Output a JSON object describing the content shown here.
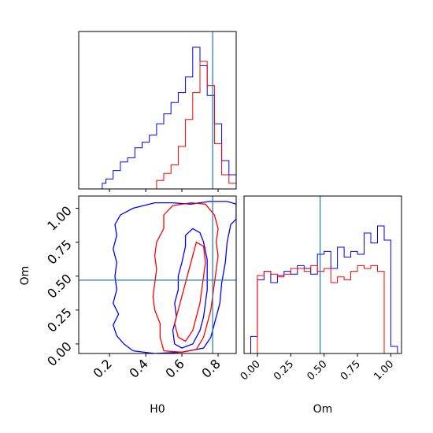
{
  "colors": {
    "blue": "#0000ff",
    "red": "#ff0000",
    "truth": "#1f77b4"
  },
  "chart_data": [
    {
      "type": "histogram",
      "panel": "H0 marginal",
      "xlim": [
        0.03,
        0.9
      ],
      "truth": 0.77,
      "xticks": [
        0.2,
        0.4,
        0.6,
        0.8
      ],
      "bins_x": [
        0.16,
        0.18,
        0.2,
        0.22,
        0.24,
        0.26,
        0.28,
        0.3,
        0.32,
        0.34,
        0.36,
        0.38,
        0.4,
        0.42,
        0.44,
        0.46,
        0.48,
        0.5,
        0.52,
        0.54,
        0.56,
        0.58,
        0.6,
        0.62,
        0.64,
        0.66,
        0.68,
        0.7,
        0.72,
        0.74,
        0.76,
        0.78,
        0.8,
        0.82,
        0.84,
        0.86,
        0.88,
        0.9
      ],
      "series": [
        {
          "color": "blue",
          "heights": [
            0.04,
            0.07,
            0.07,
            0.13,
            0.13,
            0.19,
            0.19,
            0.22,
            0.22,
            0.29,
            0.29,
            0.33,
            0.33,
            0.38,
            0.38,
            0.46,
            0.46,
            0.53,
            0.53,
            0.61,
            0.61,
            0.68,
            0.68,
            0.79,
            0.79,
            1.0,
            1.0,
            0.87,
            0.87,
            0.66,
            0.66,
            0.46,
            0.46,
            0.2,
            0.2,
            0.1,
            0.1
          ]
        },
        {
          "color": "red",
          "heights": [
            0.0,
            0.0,
            0.0,
            0.0,
            0.0,
            0.0,
            0.0,
            0.0,
            0.0,
            0.0,
            0.0,
            0.0,
            0.0,
            0.0,
            0.0,
            0.06,
            0.06,
            0.11,
            0.11,
            0.17,
            0.17,
            0.3,
            0.3,
            0.49,
            0.49,
            0.68,
            0.68,
            0.9,
            0.9,
            0.73,
            0.73,
            0.32,
            0.32,
            0.1,
            0.1,
            0.04,
            0.04
          ]
        }
      ]
    },
    {
      "type": "contour",
      "panel": "H0 vs Om",
      "xlabel": "H0",
      "ylabel": "Om",
      "xlim": [
        0.03,
        0.9
      ],
      "ylim": [
        -0.07,
        1.09
      ],
      "xticks": [
        0.2,
        0.4,
        0.6,
        0.8
      ],
      "yticks": [
        0.0,
        0.25,
        0.5,
        0.75,
        1.0
      ],
      "truth": [
        0.77,
        0.47
      ],
      "contours": [
        {
          "color": "blue",
          "level": "outer",
          "points": [
            [
              0.33,
              -0.05
            ],
            [
              0.28,
              0.0
            ],
            [
              0.24,
              0.06
            ],
            [
              0.22,
              0.14
            ],
            [
              0.25,
              0.22
            ],
            [
              0.22,
              0.3
            ],
            [
              0.24,
              0.4
            ],
            [
              0.23,
              0.5
            ],
            [
              0.24,
              0.6
            ],
            [
              0.22,
              0.7
            ],
            [
              0.24,
              0.8
            ],
            [
              0.23,
              0.88
            ],
            [
              0.26,
              0.95
            ],
            [
              0.33,
              1.0
            ],
            [
              0.45,
              1.04
            ],
            [
              0.55,
              1.04
            ],
            [
              0.65,
              1.03
            ],
            [
              0.75,
              1.05
            ],
            [
              0.85,
              1.05
            ],
            [
              0.9,
              1.03
            ],
            [
              0.9,
              0.92
            ],
            [
              0.87,
              0.88
            ],
            [
              0.85,
              0.75
            ],
            [
              0.84,
              0.6
            ],
            [
              0.82,
              0.45
            ],
            [
              0.81,
              0.3
            ],
            [
              0.78,
              0.15
            ],
            [
              0.76,
              0.05
            ],
            [
              0.72,
              -0.03
            ],
            [
              0.6,
              -0.06
            ],
            [
              0.45,
              -0.07
            ],
            [
              0.33,
              -0.05
            ]
          ]
        },
        {
          "color": "blue",
          "level": "inner",
          "points": [
            [
              0.56,
              0.0
            ],
            [
              0.55,
              0.1
            ],
            [
              0.57,
              0.2
            ],
            [
              0.56,
              0.3
            ],
            [
              0.58,
              0.4
            ],
            [
              0.58,
              0.5
            ],
            [
              0.6,
              0.6
            ],
            [
              0.62,
              0.72
            ],
            [
              0.62,
              0.8
            ],
            [
              0.66,
              0.85
            ],
            [
              0.7,
              0.82
            ],
            [
              0.72,
              0.75
            ],
            [
              0.74,
              0.62
            ],
            [
              0.74,
              0.5
            ],
            [
              0.74,
              0.4
            ],
            [
              0.73,
              0.3
            ],
            [
              0.72,
              0.2
            ],
            [
              0.7,
              0.1
            ],
            [
              0.66,
              0.0
            ],
            [
              0.6,
              -0.03
            ],
            [
              0.56,
              0.0
            ]
          ]
        },
        {
          "color": "red",
          "level": "outer",
          "points": [
            [
              0.5,
              -0.05
            ],
            [
              0.48,
              0.05
            ],
            [
              0.48,
              0.15
            ],
            [
              0.45,
              0.25
            ],
            [
              0.44,
              0.35
            ],
            [
              0.45,
              0.45
            ],
            [
              0.46,
              0.55
            ],
            [
              0.45,
              0.65
            ],
            [
              0.46,
              0.75
            ],
            [
              0.5,
              0.85
            ],
            [
              0.5,
              0.95
            ],
            [
              0.55,
              1.02
            ],
            [
              0.65,
              1.04
            ],
            [
              0.73,
              1.03
            ],
            [
              0.78,
              0.95
            ],
            [
              0.8,
              0.85
            ],
            [
              0.79,
              0.75
            ],
            [
              0.8,
              0.65
            ],
            [
              0.79,
              0.55
            ],
            [
              0.78,
              0.45
            ],
            [
              0.77,
              0.35
            ],
            [
              0.76,
              0.25
            ],
            [
              0.74,
              0.15
            ],
            [
              0.72,
              0.05
            ],
            [
              0.68,
              -0.04
            ],
            [
              0.6,
              -0.06
            ],
            [
              0.5,
              -0.05
            ]
          ]
        },
        {
          "color": "red",
          "level": "inner",
          "points": [
            [
              0.58,
              0.05
            ],
            [
              0.56,
              0.15
            ],
            [
              0.58,
              0.25
            ],
            [
              0.6,
              0.35
            ],
            [
              0.62,
              0.45
            ],
            [
              0.64,
              0.55
            ],
            [
              0.66,
              0.65
            ],
            [
              0.68,
              0.75
            ],
            [
              0.72,
              0.72
            ],
            [
              0.73,
              0.6
            ],
            [
              0.72,
              0.5
            ],
            [
              0.71,
              0.4
            ],
            [
              0.7,
              0.3
            ],
            [
              0.68,
              0.2
            ],
            [
              0.66,
              0.1
            ],
            [
              0.62,
              0.02
            ],
            [
              0.58,
              0.05
            ]
          ]
        }
      ]
    },
    {
      "type": "histogram",
      "panel": "Om marginal",
      "xlabel": "Om",
      "xlim": [
        -0.1,
        1.08
      ],
      "truth": 0.47,
      "xticks": [
        0.0,
        0.25,
        0.5,
        0.75,
        1.0
      ],
      "xtick_labels": [
        "0.00",
        "0.25",
        "0.50",
        "0.75",
        "1.00"
      ],
      "bins_x": [
        -0.05,
        0.0,
        0.05,
        0.1,
        0.15,
        0.2,
        0.25,
        0.3,
        0.35,
        0.4,
        0.45,
        0.5,
        0.55,
        0.6,
        0.65,
        0.7,
        0.75,
        0.8,
        0.85,
        0.9,
        0.95,
        1.0,
        1.05
      ],
      "series": [
        {
          "color": "blue",
          "heights": [
            0.12,
            0.52,
            0.58,
            0.5,
            0.55,
            0.58,
            0.56,
            0.62,
            0.6,
            0.56,
            0.7,
            0.72,
            0.6,
            0.75,
            0.68,
            0.72,
            0.7,
            0.85,
            0.78,
            0.9,
            0.8,
            0.05
          ]
        },
        {
          "color": "red",
          "heights": [
            0.0,
            0.55,
            0.58,
            0.56,
            0.54,
            0.56,
            0.6,
            0.6,
            0.58,
            0.62,
            0.58,
            0.6,
            0.5,
            0.54,
            0.52,
            0.58,
            0.62,
            0.6,
            0.62,
            0.58,
            0.0,
            0.0
          ]
        }
      ]
    }
  ]
}
